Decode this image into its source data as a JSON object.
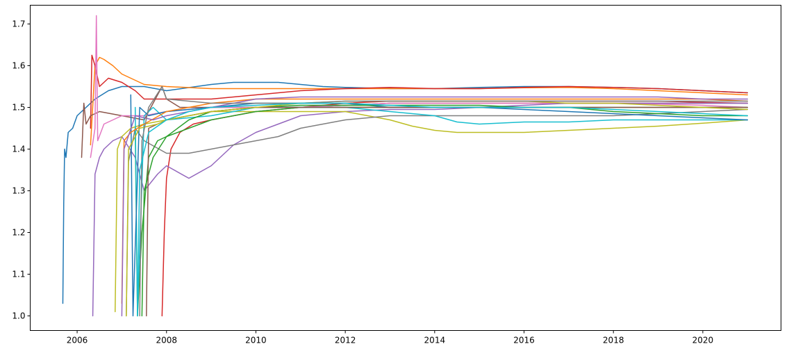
{
  "chart_data": {
    "type": "line",
    "title": "",
    "xlabel": "",
    "ylabel": "",
    "xlim": [
      2004.95,
      2021.75
    ],
    "ylim": [
      0.965,
      1.745
    ],
    "xticks": [
      2006,
      2008,
      2010,
      2012,
      2014,
      2016,
      2018,
      2020
    ],
    "xtick_labels": [
      "2006",
      "2008",
      "2010",
      "2012",
      "2014",
      "2016",
      "2018",
      "2020"
    ],
    "yticks": [
      1.0,
      1.1,
      1.2,
      1.3,
      1.4,
      1.5,
      1.6,
      1.7
    ],
    "ytick_labels": [
      "1.0",
      "1.1",
      "1.2",
      "1.3",
      "1.4",
      "1.5",
      "1.6",
      "1.7"
    ],
    "grid": false,
    "legend": "none",
    "series": [
      {
        "color": "#1f77b4",
        "x": [
          2005.68,
          2005.7,
          2005.72,
          2005.75,
          2005.8,
          2005.9,
          2006.0,
          2006.2,
          2006.4,
          2006.7,
          2007.0,
          2007.5,
          2008.0,
          2009.0,
          2009.5,
          2010.0,
          2010.5,
          2011.0,
          2011.5,
          2012.0,
          2013.0,
          2014.0,
          2015.0,
          2016.0,
          2017.0,
          2018.0,
          2019.0,
          2020.0,
          2021.0
        ],
        "y": [
          1.03,
          1.27,
          1.4,
          1.38,
          1.44,
          1.45,
          1.48,
          1.5,
          1.52,
          1.54,
          1.55,
          1.55,
          1.54,
          1.555,
          1.56,
          1.56,
          1.56,
          1.555,
          1.55,
          1.548,
          1.545,
          1.545,
          1.548,
          1.55,
          1.55,
          1.548,
          1.545,
          1.54,
          1.535
        ]
      },
      {
        "color": "#ff7f0e",
        "x": [
          2006.3,
          2006.4,
          2006.5,
          2006.6,
          2006.8,
          2007.0,
          2007.5,
          2008.0,
          2009.0,
          2010.0,
          2011.0,
          2012.0,
          2013.0,
          2014.0,
          2015.0,
          2016.0,
          2017.0,
          2018.0,
          2019.0,
          2020.0,
          2021.0
        ],
        "y": [
          1.41,
          1.6,
          1.62,
          1.615,
          1.6,
          1.58,
          1.555,
          1.55,
          1.545,
          1.545,
          1.545,
          1.545,
          1.545,
          1.545,
          1.545,
          1.547,
          1.548,
          1.545,
          1.54,
          1.535,
          1.53
        ]
      },
      {
        "color": "#d62728",
        "x": [
          2006.3,
          2006.33,
          2006.4,
          2006.5,
          2006.7,
          2007.0,
          2007.3,
          2007.5,
          2008.0,
          2009.0,
          2010.0,
          2011.0,
          2012.0,
          2013.0,
          2014.0,
          2015.0,
          2016.0,
          2017.0,
          2018.0,
          2019.0,
          2020.0,
          2021.0
        ],
        "y": [
          1.45,
          1.625,
          1.6,
          1.55,
          1.57,
          1.56,
          1.54,
          1.52,
          1.52,
          1.52,
          1.53,
          1.54,
          1.545,
          1.548,
          1.545,
          1.545,
          1.548,
          1.55,
          1.548,
          1.545,
          1.54,
          1.535
        ]
      },
      {
        "color": "#d62728",
        "x": [
          2007.9,
          2007.95,
          2008.0,
          2008.1,
          2008.3,
          2008.6,
          2009.0,
          2009.5,
          2010.0,
          2011.0,
          2012.0,
          2013.0,
          2014.0,
          2015.0,
          2016.0,
          2017.0,
          2018.0,
          2019.0,
          2020.0,
          2021.0
        ],
        "y": [
          1.0,
          1.2,
          1.33,
          1.4,
          1.44,
          1.46,
          1.47,
          1.48,
          1.49,
          1.5,
          1.51,
          1.515,
          1.515,
          1.515,
          1.515,
          1.515,
          1.515,
          1.515,
          1.512,
          1.51
        ]
      },
      {
        "color": "#8c564b",
        "x": [
          2006.1,
          2006.15,
          2006.2,
          2006.3,
          2006.5,
          2007.0,
          2007.5,
          2007.9,
          2008.0,
          2008.3,
          2009.0,
          2010.0,
          2011.0,
          2012.0,
          2013.0,
          2014.0,
          2015.0,
          2016.0,
          2017.0,
          2018.0,
          2019.0,
          2020.0,
          2021.0
        ],
        "y": [
          1.38,
          1.51,
          1.46,
          1.48,
          1.49,
          1.48,
          1.47,
          1.55,
          1.52,
          1.5,
          1.5,
          1.5,
          1.5,
          1.505,
          1.51,
          1.51,
          1.51,
          1.51,
          1.51,
          1.51,
          1.51,
          1.51,
          1.51
        ]
      },
      {
        "color": "#e377c2",
        "x": [
          2006.3,
          2006.4,
          2006.43,
          2006.46,
          2006.6,
          2006.8,
          2007.0,
          2007.5,
          2008.0,
          2009.0,
          2010.0,
          2011.0,
          2012.0,
          2013.0,
          2014.0,
          2015.0,
          2016.0,
          2017.0,
          2018.0,
          2019.0,
          2020.0,
          2021.0
        ],
        "y": [
          1.38,
          1.45,
          1.72,
          1.42,
          1.46,
          1.47,
          1.48,
          1.48,
          1.49,
          1.5,
          1.5,
          1.5,
          1.505,
          1.51,
          1.51,
          1.51,
          1.51,
          1.51,
          1.51,
          1.508,
          1.505,
          1.5
        ]
      },
      {
        "color": "#9467bd",
        "x": [
          2006.35,
          2006.4,
          2006.5,
          2006.6,
          2006.8,
          2007.0,
          2007.3,
          2007.5,
          2007.8,
          2008.0,
          2008.5,
          2009.0,
          2009.5,
          2010.0,
          2010.5,
          2011.0,
          2012.0,
          2013.0,
          2014.0,
          2015.0,
          2016.0,
          2017.0,
          2018.0,
          2019.0,
          2020.0,
          2021.0
        ],
        "y": [
          1.0,
          1.34,
          1.38,
          1.4,
          1.42,
          1.43,
          1.38,
          1.3,
          1.34,
          1.36,
          1.33,
          1.36,
          1.41,
          1.44,
          1.46,
          1.48,
          1.49,
          1.495,
          1.495,
          1.5,
          1.505,
          1.51,
          1.51,
          1.51,
          1.51,
          1.51
        ]
      },
      {
        "color": "#bcbd22",
        "x": [
          2006.85,
          2006.9,
          2007.0,
          2007.2,
          2007.5,
          2008.0,
          2008.5,
          2009.0,
          2010.0,
          2011.0,
          2012.0,
          2013.0,
          2013.5,
          2014.0,
          2014.5,
          2015.0,
          2016.0,
          2017.0,
          2018.0,
          2019.0,
          2020.0,
          2021.0
        ],
        "y": [
          1.01,
          1.4,
          1.43,
          1.45,
          1.46,
          1.47,
          1.48,
          1.49,
          1.49,
          1.49,
          1.49,
          1.47,
          1.455,
          1.445,
          1.44,
          1.44,
          1.44,
          1.445,
          1.45,
          1.455,
          1.462,
          1.47
        ]
      },
      {
        "color": "#7f7f7f",
        "x": [
          2007.1,
          2007.15,
          2007.3,
          2007.5,
          2008.0,
          2008.5,
          2009.0,
          2009.5,
          2010.0,
          2010.5,
          2011.0,
          2012.0,
          2013.0,
          2014.0,
          2015.0,
          2016.0,
          2017.0,
          2018.0,
          2019.0,
          2020.0,
          2021.0
        ],
        "y": [
          1.0,
          1.37,
          1.45,
          1.42,
          1.39,
          1.39,
          1.4,
          1.41,
          1.42,
          1.43,
          1.45,
          1.47,
          1.48,
          1.48,
          1.48,
          1.48,
          1.48,
          1.48,
          1.485,
          1.49,
          1.495
        ]
      },
      {
        "color": "#2ca02c",
        "x": [
          2007.3,
          2007.35,
          2007.45,
          2007.6,
          2007.8,
          2008.0,
          2008.5,
          2009.0,
          2010.0,
          2011.0,
          2012.0,
          2013.0,
          2014.0,
          2015.0,
          2016.0,
          2017.0,
          2018.0,
          2019.0,
          2020.0,
          2021.0
        ],
        "y": [
          1.45,
          1.0,
          1.2,
          1.38,
          1.42,
          1.43,
          1.45,
          1.47,
          1.49,
          1.5,
          1.5,
          1.5,
          1.5,
          1.5,
          1.5,
          1.5,
          1.49,
          1.485,
          1.48,
          1.48
        ]
      },
      {
        "color": "#17becf",
        "x": [
          2007.3,
          2007.35,
          2007.5,
          2007.7,
          2008.0,
          2009.0,
          2010.0,
          2011.0,
          2012.0,
          2013.0,
          2014.0,
          2014.5,
          2015.0,
          2016.0,
          2017.0,
          2018.0,
          2019.0,
          2020.0,
          2021.0
        ],
        "y": [
          1.5,
          1.0,
          1.48,
          1.5,
          1.47,
          1.48,
          1.5,
          1.5,
          1.5,
          1.49,
          1.48,
          1.465,
          1.46,
          1.465,
          1.465,
          1.47,
          1.47,
          1.47,
          1.47
        ]
      },
      {
        "color": "#1f77b4",
        "x": [
          2007.2,
          2007.25,
          2007.4,
          2007.6,
          2008.0,
          2009.0,
          2010.0,
          2011.0,
          2012.0,
          2013.0,
          2014.0,
          2015.0,
          2016.0,
          2017.0,
          2018.0,
          2019.0,
          2020.0,
          2021.0
        ],
        "y": [
          1.53,
          1.0,
          1.5,
          1.48,
          1.49,
          1.5,
          1.51,
          1.51,
          1.51,
          1.5,
          1.5,
          1.5,
          1.495,
          1.49,
          1.485,
          1.48,
          1.475,
          1.47
        ]
      },
      {
        "color": "#ff7f0e",
        "x": [
          2007.0,
          2007.05,
          2007.2,
          2007.5,
          2008.0,
          2008.5,
          2009.0,
          2010.0,
          2011.0,
          2012.0,
          2013.0,
          2014.0,
          2015.0,
          2016.0,
          2017.0,
          2018.0,
          2019.0,
          2020.0,
          2021.0
        ],
        "y": [
          1.03,
          1.42,
          1.44,
          1.46,
          1.49,
          1.5,
          1.51,
          1.52,
          1.52,
          1.52,
          1.52,
          1.52,
          1.52,
          1.52,
          1.52,
          1.52,
          1.52,
          1.52,
          1.515
        ]
      },
      {
        "color": "#2ca02c",
        "x": [
          2007.45,
          2007.5,
          2007.7,
          2008.0,
          2008.5,
          2009.0,
          2010.0,
          2011.0,
          2012.0,
          2013.0,
          2014.0,
          2015.0,
          2016.0,
          2017.0,
          2018.0,
          2019.0,
          2020.0,
          2021.0
        ],
        "y": [
          1.0,
          1.3,
          1.38,
          1.43,
          1.47,
          1.49,
          1.5,
          1.505,
          1.505,
          1.505,
          1.505,
          1.505,
          1.5,
          1.5,
          1.5,
          1.5,
          1.5,
          1.5
        ]
      },
      {
        "color": "#8c564b",
        "x": [
          2007.55,
          2007.6,
          2007.8,
          2008.0,
          2009.0,
          2010.0,
          2011.0,
          2012.0,
          2013.0,
          2014.0,
          2015.0,
          2016.0,
          2017.0,
          2018.0,
          2019.0,
          2020.0,
          2021.0
        ],
        "y": [
          1.0,
          1.45,
          1.46,
          1.47,
          1.49,
          1.5,
          1.5,
          1.5,
          1.5,
          1.5,
          1.5,
          1.5,
          1.5,
          1.5,
          1.5,
          1.5,
          1.5
        ]
      },
      {
        "color": "#9467bd",
        "x": [
          2007.0,
          2007.05,
          2007.3,
          2007.7,
          2008.0,
          2009.0,
          2010.0,
          2011.0,
          2012.0,
          2013.0,
          2014.0,
          2015.0,
          2016.0,
          2017.0,
          2018.0,
          2019.0,
          2020.0,
          2021.0
        ],
        "y": [
          1.0,
          1.4,
          1.48,
          1.47,
          1.48,
          1.5,
          1.52,
          1.525,
          1.525,
          1.525,
          1.525,
          1.525,
          1.525,
          1.525,
          1.525,
          1.525,
          1.52,
          1.52
        ]
      },
      {
        "color": "#bcbd22",
        "x": [
          2007.1,
          2007.15,
          2007.4,
          2007.8,
          2008.0,
          2009.0,
          2010.0,
          2011.0,
          2012.0,
          2013.0,
          2014.0,
          2015.0,
          2016.0,
          2017.0,
          2018.0,
          2019.0,
          2020.0,
          2021.0
        ],
        "y": [
          1.0,
          1.4,
          1.45,
          1.46,
          1.47,
          1.49,
          1.5,
          1.51,
          1.515,
          1.515,
          1.515,
          1.515,
          1.515,
          1.51,
          1.51,
          1.505,
          1.5,
          1.495
        ]
      },
      {
        "color": "#7f7f7f",
        "x": [
          2007.4,
          2007.45,
          2007.6,
          2007.9,
          2008.0,
          2009.0,
          2010.0,
          2011.0,
          2012.0,
          2013.0,
          2014.0,
          2015.0,
          2016.0,
          2017.0,
          2018.0,
          2019.0,
          2020.0,
          2021.0
        ],
        "y": [
          1.0,
          1.42,
          1.5,
          1.55,
          1.52,
          1.51,
          1.51,
          1.51,
          1.515,
          1.515,
          1.515,
          1.515,
          1.515,
          1.515,
          1.515,
          1.515,
          1.515,
          1.515
        ]
      },
      {
        "color": "#17becf",
        "x": [
          2007.35,
          2007.4,
          2007.6,
          2008.0,
          2008.5,
          2009.0,
          2010.0,
          2011.0,
          2012.0,
          2013.0,
          2014.0,
          2015.0,
          2016.0,
          2017.0,
          2018.0,
          2019.0,
          2020.0,
          2021.0
        ],
        "y": [
          1.0,
          1.35,
          1.44,
          1.47,
          1.49,
          1.5,
          1.505,
          1.51,
          1.51,
          1.505,
          1.5,
          1.5,
          1.5,
          1.5,
          1.495,
          1.49,
          1.485,
          1.48
        ]
      }
    ]
  }
}
